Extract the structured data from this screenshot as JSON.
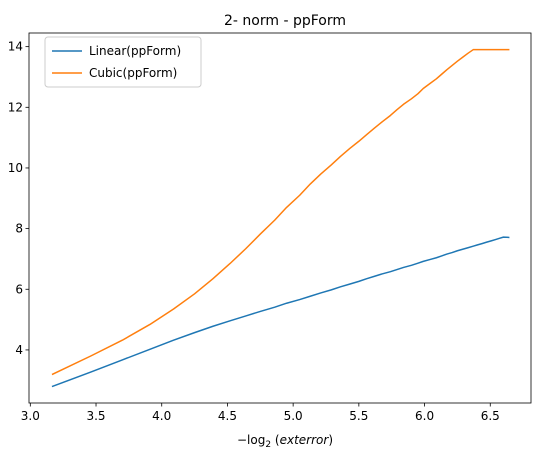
{
  "chart_data": {
    "type": "line",
    "title": "2- norm - ppForm",
    "xlabel": {
      "prefix": "−log",
      "subscript": "2",
      "open": " (",
      "italic": "exterror",
      "close": ")"
    },
    "ylabel": "",
    "xlim": [
      2.99,
      6.81
    ],
    "ylim": [
      2.25,
      14.45
    ],
    "xticks": [
      3.0,
      3.5,
      4.0,
      4.5,
      5.0,
      5.5,
      6.0,
      6.5
    ],
    "xtick_labels": [
      "3.0",
      "3.5",
      "4.0",
      "4.5",
      "5.0",
      "5.5",
      "6.0",
      "6.5"
    ],
    "yticks": [
      4,
      6,
      8,
      10,
      12,
      14
    ],
    "ytick_labels": [
      "4",
      "6",
      "8",
      "10",
      "12",
      "14"
    ],
    "grid": false,
    "legend_position": "top-left",
    "series": [
      {
        "name": "Linear(ppForm)",
        "color": "#1f77b4",
        "x": [
          3.17,
          3.46,
          3.7,
          3.91,
          4.09,
          4.25,
          4.39,
          4.52,
          4.64,
          4.75,
          4.86,
          4.95,
          5.05,
          5.13,
          5.21,
          5.29,
          5.36,
          5.43,
          5.5,
          5.56,
          5.62,
          5.68,
          5.74,
          5.79,
          5.84,
          5.9,
          5.95,
          5.99,
          6.04,
          6.09,
          6.13,
          6.17,
          6.21,
          6.25,
          6.29,
          6.33,
          6.37,
          6.4,
          6.44,
          6.47,
          6.51,
          6.54,
          6.57,
          6.6,
          6.64
        ],
        "y": [
          2.8,
          3.27,
          3.67,
          4.02,
          4.32,
          4.57,
          4.78,
          4.96,
          5.12,
          5.27,
          5.41,
          5.54,
          5.66,
          5.77,
          5.88,
          5.98,
          6.08,
          6.17,
          6.26,
          6.35,
          6.43,
          6.51,
          6.58,
          6.65,
          6.72,
          6.79,
          6.86,
          6.92,
          6.98,
          7.04,
          7.1,
          7.16,
          7.21,
          7.27,
          7.32,
          7.37,
          7.42,
          7.46,
          7.51,
          7.55,
          7.6,
          7.64,
          7.68,
          7.72,
          7.71
        ]
      },
      {
        "name": "Cubic(ppForm)",
        "color": "#ff7f0e",
        "x": [
          3.17,
          3.46,
          3.7,
          3.91,
          4.09,
          4.25,
          4.39,
          4.52,
          4.64,
          4.75,
          4.86,
          4.95,
          5.05,
          5.13,
          5.21,
          5.29,
          5.36,
          5.43,
          5.5,
          5.56,
          5.62,
          5.68,
          5.74,
          5.79,
          5.84,
          5.9,
          5.95,
          5.99,
          6.04,
          6.09,
          6.13,
          6.17,
          6.21,
          6.25,
          6.29,
          6.33,
          6.37,
          6.4,
          6.44,
          6.47,
          6.51,
          6.54,
          6.57,
          6.6,
          6.64
        ],
        "y": [
          3.2,
          3.8,
          4.32,
          4.84,
          5.35,
          5.85,
          6.35,
          6.85,
          7.34,
          7.82,
          8.28,
          8.7,
          9.1,
          9.47,
          9.8,
          10.1,
          10.38,
          10.64,
          10.88,
          11.1,
          11.32,
          11.53,
          11.73,
          11.92,
          12.1,
          12.28,
          12.45,
          12.62,
          12.78,
          12.94,
          13.09,
          13.24,
          13.38,
          13.52,
          13.65,
          13.78,
          13.9,
          13.9,
          13.9,
          13.9,
          13.9,
          13.9,
          13.9,
          13.9,
          13.9
        ]
      }
    ]
  }
}
